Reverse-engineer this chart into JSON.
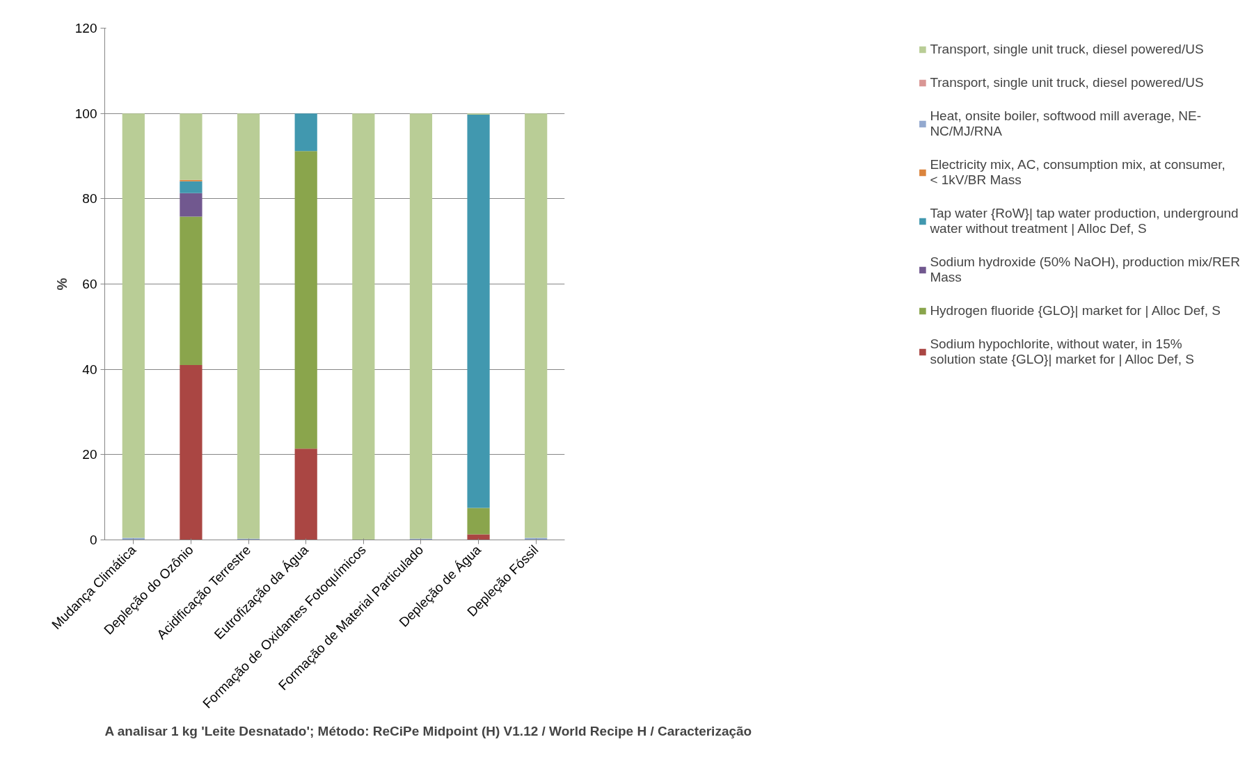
{
  "chart_data": {
    "type": "bar",
    "stacked": true,
    "categories": [
      "Mudança Climática",
      "Depleção do Ozônio",
      "Acidificação Terrestre",
      "Eutrofização da Água",
      "Formação de Oxidantes Fotoquímicos",
      "Formação de Material Particulado",
      "Depleção de Água",
      "Depleção Fóssil"
    ],
    "ylabel": "%",
    "ylim": [
      0,
      120
    ],
    "yticks": [
      0,
      20,
      40,
      60,
      80,
      100,
      120
    ],
    "grid": "y",
    "legend": "right",
    "annotations": [
      "A analisar 1 kg 'Leite Desnatado';  Método: ReCiPe Midpoint (H) V1.12 / World Recipe H / Caracterização"
    ],
    "series": [
      {
        "name": "Sodium hypochlorite, without water, in 15% solution state {GLO}| market for | Alloc Def, S",
        "color": "#aa4643",
        "values": [
          0,
          41,
          0,
          21.4,
          0,
          0,
          1.3,
          0
        ]
      },
      {
        "name": "Hydrogen fluoride {GLO}| market for | Alloc Def, S",
        "color": "#8aa54c",
        "values": [
          0,
          34.8,
          0,
          69.8,
          0,
          0,
          6.2,
          0
        ]
      },
      {
        "name": "Sodium hydroxide (50% NaOH), production mix/RER Mass",
        "color": "#71588f",
        "values": [
          0,
          5.5,
          0,
          0,
          0,
          0,
          0,
          0
        ]
      },
      {
        "name": "Tap water {RoW}| tap water production, underground water without treatment | Alloc Def, S",
        "color": "#4198af",
        "values": [
          0,
          2.8,
          0,
          8.8,
          0,
          0,
          92.2,
          0
        ]
      },
      {
        "name": "Electricity mix, AC, consumption mix, at consumer, < 1kV/BR Mass",
        "color": "#db843d",
        "values": [
          0,
          0.3,
          0,
          0,
          0,
          0,
          0,
          0
        ]
      },
      {
        "name": "Heat, onsite boiler, softwood mill average, NE-NC/MJ/RNA",
        "color": "#93a9cf",
        "values": [
          0.5,
          0,
          0.3,
          0,
          0,
          0.3,
          0,
          0.5
        ]
      },
      {
        "name": "Transport, single unit truck, diesel powered/US",
        "color": "#d99694",
        "values": [
          0,
          0,
          0,
          0,
          0,
          0,
          0,
          0
        ]
      },
      {
        "name": "Transport, single unit truck, diesel powered/US",
        "color": "#b9cd96",
        "values": [
          99.5,
          15.6,
          99.7,
          0,
          100,
          99.7,
          0.3,
          99.5
        ]
      }
    ]
  }
}
